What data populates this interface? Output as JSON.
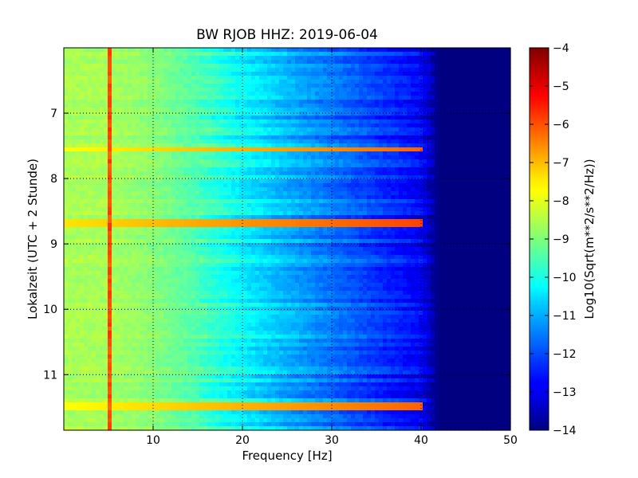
{
  "chart_data": {
    "type": "heatmap",
    "title": "BW RJOB HHZ: 2019-06-04",
    "xlabel": "Frequency [Hz]",
    "ylabel": "Lokalzeit (UTC + 2 Stunde)",
    "xlim": [
      0,
      50
    ],
    "ylim": [
      11.85,
      6.0
    ],
    "x_ticks": [
      10,
      20,
      30,
      40,
      50
    ],
    "y_ticks": [
      7,
      8,
      9,
      10,
      11
    ],
    "grid": true,
    "colorbar": {
      "label": "Log10(Sqrt(m**2/s**2/Hz))",
      "min": -14,
      "max": -4,
      "ticks": [
        -4,
        -5,
        -6,
        -7,
        -8,
        -9,
        -10,
        -11,
        -12,
        -13,
        -14
      ],
      "colormap": "jet"
    },
    "approx_level_by_frequency": {
      "x": [
        0,
        5,
        10,
        15,
        20,
        25,
        30,
        35,
        40,
        42,
        50
      ],
      "value": [
        -8.6,
        -8.6,
        -8.9,
        -9.5,
        -10.3,
        -11.0,
        -11.6,
        -12.2,
        -12.8,
        -14.0,
        -14.0
      ]
    },
    "notable_features": [
      {
        "kind": "vertical_line",
        "frequency": 5.0,
        "value": -6.0
      },
      {
        "kind": "horizontal_band",
        "time": 7.55,
        "value": -7.8
      },
      {
        "kind": "horizontal_band",
        "time": 8.7,
        "value": -7.5
      },
      {
        "kind": "horizontal_band",
        "time": 11.5,
        "value": -7.8
      }
    ]
  }
}
